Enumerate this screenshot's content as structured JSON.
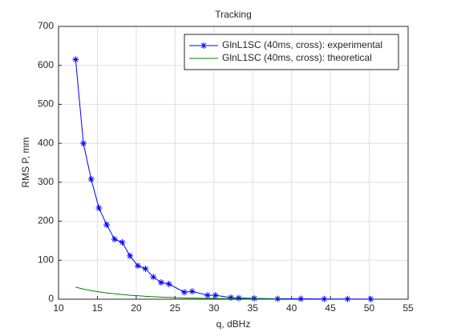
{
  "chart_data": {
    "type": "line",
    "title": "Tracking",
    "x_label": "q, dBHz",
    "y_label": "RMS P, mm",
    "xlim": [
      10,
      55
    ],
    "xticks": [
      10,
      15,
      20,
      25,
      30,
      35,
      40,
      45,
      50,
      55
    ],
    "ylim": [
      0,
      700
    ],
    "yticks": [
      0,
      100,
      200,
      300,
      400,
      500,
      600,
      700
    ],
    "grid": true,
    "legend_position": "upper-right",
    "series": [
      {
        "name": "GlnL1SC (40ms, cross): experimental",
        "color": "#0000ff",
        "marker": "asterisk",
        "x": [
          12.2,
          13.2,
          14.2,
          15.2,
          16.2,
          17.2,
          18.2,
          19.2,
          20.2,
          21.2,
          22.2,
          23.2,
          24.2,
          26.2,
          27.2,
          29.2,
          30.2,
          32.2,
          33.2,
          35.2,
          38.2,
          41.2,
          44.2,
          47.2,
          50.2
        ],
        "values": [
          615,
          400,
          308,
          234,
          191,
          154,
          146,
          111,
          86,
          78,
          57,
          43,
          39,
          18,
          20,
          10,
          10,
          4,
          3,
          2,
          1,
          1,
          0.5,
          0.5,
          0.3
        ]
      },
      {
        "name": "GlnL1SC (40ms, cross): theoretical",
        "color": "#008000",
        "marker": "none",
        "x": [
          12.2,
          13.2,
          14.2,
          15.2,
          16.2,
          17.2,
          18.2,
          19.2,
          20.2,
          21.2,
          22.2,
          23.2,
          24.2,
          26.2,
          27.2,
          29.2,
          30.2,
          32.2,
          33.2,
          35.2,
          38.2
        ],
        "values": [
          31,
          26,
          22,
          19,
          16,
          14,
          12,
          10,
          9,
          7.5,
          6.5,
          5.5,
          4.7,
          3.4,
          2.9,
          2.1,
          1.8,
          1.3,
          1.1,
          0.8,
          0.5
        ]
      }
    ]
  }
}
